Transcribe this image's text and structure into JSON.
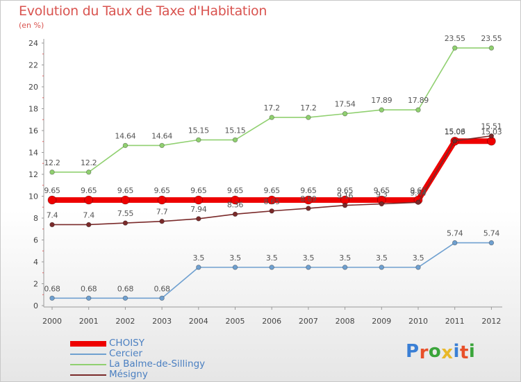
{
  "title": "Evolution du Taux de Taxe d'Habitation",
  "unit": "(en %)",
  "brand": {
    "text": "Proxiti",
    "colors": [
      "#3a7fd5",
      "#e8502a",
      "#3aa53a",
      "#e8b82a",
      "#3a7fd5",
      "#e8502a",
      "#3aa53a"
    ]
  },
  "chart_data": {
    "type": "line",
    "title": "Evolution du Taux de Taxe d'Habitation",
    "ylabel": "(en %)",
    "xlabel": "",
    "x": [
      "2000",
      "2001",
      "2002",
      "2003",
      "2004",
      "2005",
      "2006",
      "2007",
      "2008",
      "2009",
      "2010",
      "2011",
      "2012"
    ],
    "ylim": [
      0,
      24
    ],
    "yticks": [
      "0",
      "2",
      "4",
      "6",
      "8",
      "10",
      "12",
      "14",
      "16",
      "18",
      "20",
      "22",
      "24"
    ],
    "grid": false,
    "legend_placement": "bottom-left",
    "series": [
      {
        "name": "CHOISY",
        "color": "#ee0000",
        "values": [
          9.65,
          9.65,
          9.65,
          9.65,
          9.65,
          9.65,
          9.65,
          9.65,
          9.65,
          9.65,
          9.65,
          15.03,
          15.03
        ],
        "labels": [
          "9.65",
          "9.65",
          "9.65",
          "9.65",
          "9.65",
          "9.65",
          "9.65",
          "9.65",
          "9.65",
          "9.65",
          "9.65",
          "15.03",
          "15.03"
        ]
      },
      {
        "name": "Cercier",
        "color": "#6fa0d0",
        "values": [
          0.68,
          0.68,
          0.68,
          0.68,
          3.5,
          3.5,
          3.5,
          3.5,
          3.5,
          3.5,
          3.5,
          5.74,
          5.74
        ],
        "labels": [
          "0.68",
          "0.68",
          "0.68",
          "0.68",
          "3.5",
          "3.5",
          "3.5",
          "3.5",
          "3.5",
          "3.5",
          "3.5",
          "5.74",
          "5.74"
        ]
      },
      {
        "name": "La Balme-de-Sillingy",
        "color": "#90d070",
        "values": [
          12.2,
          12.2,
          14.64,
          14.64,
          15.15,
          15.15,
          17.2,
          17.2,
          17.54,
          17.89,
          17.89,
          23.55,
          23.55
        ],
        "labels": [
          "12.2",
          "12.2",
          "14.64",
          "14.64",
          "15.15",
          "15.15",
          "17.2",
          "17.2",
          "17.54",
          "17.89",
          "17.89",
          "23.55",
          "23.55"
        ]
      },
      {
        "name": "Mésigny",
        "color": "#7a2a2a",
        "values": [
          7.4,
          7.4,
          7.55,
          7.7,
          7.94,
          8.36,
          8.65,
          8.89,
          9.16,
          9.3,
          9.44,
          15.06,
          15.51
        ],
        "labels": [
          "7.4",
          "7.4",
          "7.55",
          "7.7",
          "7.94",
          "8.36",
          "8.65",
          "8.89",
          "9.16",
          "9.3",
          "9.44",
          "15.06",
          "15.51"
        ]
      }
    ]
  }
}
